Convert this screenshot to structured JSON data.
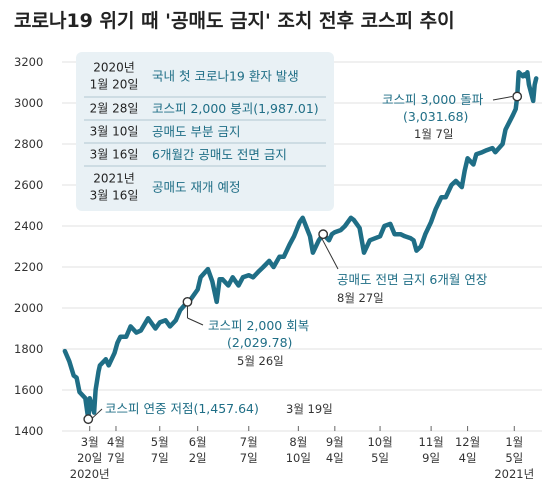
{
  "chart_data": {
    "type": "line",
    "title": "코로나19 위기 때 '공매도 금지' 조치 전후 코스피 추이",
    "xlabel": "",
    "ylabel": "",
    "ylim": [
      1400,
      3200
    ],
    "yticks": [
      1400,
      1600,
      1800,
      2000,
      2200,
      2400,
      2600,
      2800,
      3000,
      3200
    ],
    "x_tick_labels": [
      {
        "date": "2020-03-20",
        "lines": [
          "3월",
          "20일",
          "2020년"
        ]
      },
      {
        "date": "2020-04-07",
        "lines": [
          "4월",
          "7일"
        ]
      },
      {
        "date": "2020-05-07",
        "lines": [
          "5월",
          "7일"
        ]
      },
      {
        "date": "2020-06-02",
        "lines": [
          "6월",
          "2일"
        ]
      },
      {
        "date": "2020-07-07",
        "lines": [
          "7월",
          "7일"
        ]
      },
      {
        "date": "2020-08-10",
        "lines": [
          "8월",
          "10일"
        ]
      },
      {
        "date": "2020-09-04",
        "lines": [
          "9월",
          "4일"
        ]
      },
      {
        "date": "2020-10-05",
        "lines": [
          "10월",
          "5일"
        ]
      },
      {
        "date": "2020-11-09",
        "lines": [
          "11월",
          "9일"
        ]
      },
      {
        "date": "2020-12-04",
        "lines": [
          "12월",
          "4일"
        ]
      },
      {
        "date": "2021-01-05",
        "lines": [
          "1월",
          "5일",
          "2021년"
        ]
      }
    ],
    "series": [
      {
        "color": "#1f6e86",
        "points": [
          [
            "2020-03-03",
            1790
          ],
          [
            "2020-03-06",
            1740
          ],
          [
            "2020-03-09",
            1670
          ],
          [
            "2020-03-11",
            1660
          ],
          [
            "2020-03-13",
            1590
          ],
          [
            "2020-03-17",
            1560
          ],
          [
            "2020-03-19",
            1457.64
          ],
          [
            "2020-03-20",
            1560
          ],
          [
            "2020-03-23",
            1490
          ],
          [
            "2020-03-24",
            1600
          ],
          [
            "2020-03-26",
            1690
          ],
          [
            "2020-03-27",
            1720
          ],
          [
            "2020-03-31",
            1750
          ],
          [
            "2020-04-02",
            1720
          ],
          [
            "2020-04-06",
            1780
          ],
          [
            "2020-04-08",
            1830
          ],
          [
            "2020-04-10",
            1860
          ],
          [
            "2020-04-14",
            1860
          ],
          [
            "2020-04-17",
            1910
          ],
          [
            "2020-04-21",
            1880
          ],
          [
            "2020-04-24",
            1890
          ],
          [
            "2020-04-29",
            1950
          ],
          [
            "2020-05-04",
            1900
          ],
          [
            "2020-05-07",
            1930
          ],
          [
            "2020-05-11",
            1940
          ],
          [
            "2020-05-14",
            1910
          ],
          [
            "2020-05-18",
            1940
          ],
          [
            "2020-05-21",
            1990
          ],
          [
            "2020-05-26",
            2029.78
          ],
          [
            "2020-05-28",
            2040
          ],
          [
            "2020-06-02",
            2090
          ],
          [
            "2020-06-04",
            2150
          ],
          [
            "2020-06-09",
            2190
          ],
          [
            "2020-06-12",
            2130
          ],
          [
            "2020-06-15",
            2030
          ],
          [
            "2020-06-17",
            2140
          ],
          [
            "2020-06-19",
            2140
          ],
          [
            "2020-06-23",
            2110
          ],
          [
            "2020-06-26",
            2150
          ],
          [
            "2020-06-30",
            2110
          ],
          [
            "2020-07-03",
            2150
          ],
          [
            "2020-07-07",
            2160
          ],
          [
            "2020-07-10",
            2150
          ],
          [
            "2020-07-14",
            2180
          ],
          [
            "2020-07-17",
            2200
          ],
          [
            "2020-07-21",
            2230
          ],
          [
            "2020-07-24",
            2200
          ],
          [
            "2020-07-28",
            2250
          ],
          [
            "2020-07-31",
            2250
          ],
          [
            "2020-08-04",
            2310
          ],
          [
            "2020-08-07",
            2350
          ],
          [
            "2020-08-11",
            2420
          ],
          [
            "2020-08-13",
            2440
          ],
          [
            "2020-08-18",
            2350
          ],
          [
            "2020-08-20",
            2270
          ],
          [
            "2020-08-24",
            2330
          ],
          [
            "2020-08-27",
            2360
          ],
          [
            "2020-08-31",
            2330
          ],
          [
            "2020-09-02",
            2360
          ],
          [
            "2020-09-04",
            2370
          ],
          [
            "2020-09-08",
            2380
          ],
          [
            "2020-09-11",
            2400
          ],
          [
            "2020-09-15",
            2440
          ],
          [
            "2020-09-17",
            2430
          ],
          [
            "2020-09-21",
            2390
          ],
          [
            "2020-09-24",
            2270
          ],
          [
            "2020-09-28",
            2330
          ],
          [
            "2020-10-05",
            2350
          ],
          [
            "2020-10-08",
            2400
          ],
          [
            "2020-10-12",
            2410
          ],
          [
            "2020-10-15",
            2360
          ],
          [
            "2020-10-19",
            2360
          ],
          [
            "2020-10-22",
            2350
          ],
          [
            "2020-10-26",
            2340
          ],
          [
            "2020-10-28",
            2330
          ],
          [
            "2020-10-30",
            2280
          ],
          [
            "2020-11-02",
            2300
          ],
          [
            "2020-11-05",
            2360
          ],
          [
            "2020-11-09",
            2420
          ],
          [
            "2020-11-12",
            2480
          ],
          [
            "2020-11-16",
            2540
          ],
          [
            "2020-11-19",
            2540
          ],
          [
            "2020-11-23",
            2600
          ],
          [
            "2020-11-26",
            2620
          ],
          [
            "2020-11-30",
            2590
          ],
          [
            "2020-12-02",
            2670
          ],
          [
            "2020-12-04",
            2730
          ],
          [
            "2020-12-08",
            2700
          ],
          [
            "2020-12-10",
            2750
          ],
          [
            "2020-12-14",
            2760
          ],
          [
            "2020-12-17",
            2770
          ],
          [
            "2020-12-21",
            2780
          ],
          [
            "2020-12-23",
            2760
          ],
          [
            "2020-12-28",
            2800
          ],
          [
            "2020-12-30",
            2870
          ],
          [
            "2021-01-04",
            2940
          ],
          [
            "2021-01-06",
            2970
          ],
          [
            "2021-01-07",
            3031.68
          ],
          [
            "2021-01-08",
            3150
          ],
          [
            "2021-01-11",
            3130
          ],
          [
            "2021-01-12",
            3140
          ],
          [
            "2021-01-13",
            3130
          ],
          [
            "2021-01-14",
            3150
          ],
          [
            "2021-01-15",
            3090
          ],
          [
            "2021-01-18",
            3010
          ],
          [
            "2021-01-19",
            3090
          ],
          [
            "2021-01-20",
            3120
          ]
        ]
      }
    ],
    "markers": [
      {
        "date": "2020-03-19",
        "value": 1457.64
      },
      {
        "date": "2020-05-26",
        "value": 2029.78
      },
      {
        "date": "2020-08-27",
        "value": 2360
      },
      {
        "date": "2021-01-07",
        "value": 3031.68
      }
    ],
    "annotations": {
      "low": {
        "text": "코스피 연중 저점(1,457.64)",
        "date_text": "3월 19일"
      },
      "recover": {
        "line1": "코스피 2,000 회복",
        "line2": "(2,029.78)",
        "date_text": "5월 26일"
      },
      "extend": {
        "line1": "공매도 전면 금지 6개월 연장",
        "date_text": "8월 27일"
      },
      "break3000": {
        "line1": "코스피 3,000 돌파",
        "line2": "(3,031.68)",
        "date_text": "1월 7일"
      }
    },
    "legend": [
      {
        "date_lines": [
          "2020년",
          "1월 20일"
        ],
        "text": "국내 첫 코로나19 환자 발생"
      },
      {
        "date_lines": [
          "2월 28일"
        ],
        "text": "코스피 2,000 붕괴(1,987.01)"
      },
      {
        "date_lines": [
          "3월 10일"
        ],
        "text": "공매도 부분 금지"
      },
      {
        "date_lines": [
          "3월 16일"
        ],
        "text": "6개월간 공매도 전면 금지"
      },
      {
        "date_lines": [
          "2021년",
          "3월 16일"
        ],
        "text": "공매도 재개 예정"
      }
    ],
    "colors": {
      "line": "#1f6e86",
      "legend_bg": "#e9f1f5",
      "grid": "#d6d6d6",
      "text_blue": "#1f6e86"
    },
    "grid": "horizontal"
  }
}
